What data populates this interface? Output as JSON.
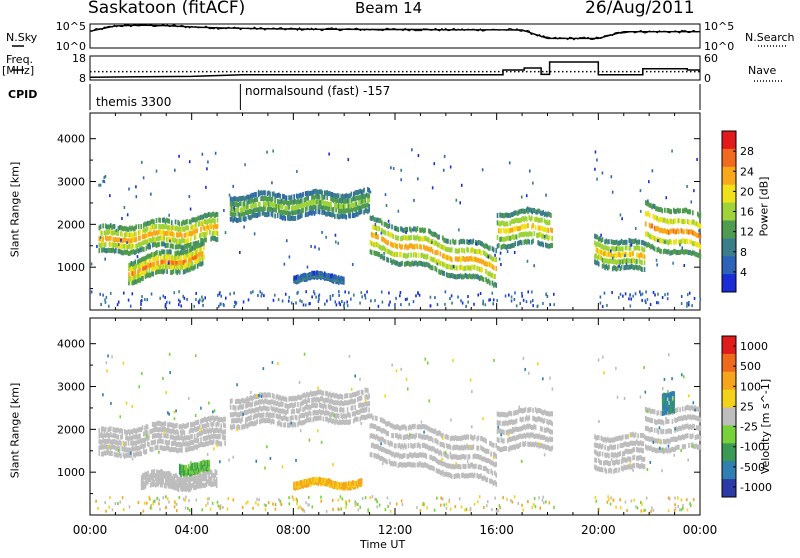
{
  "header": {
    "radar": "Saskatoon (fitACF)",
    "beam": "Beam 14",
    "date": "26/Aug/2011"
  },
  "panel_labels": {
    "nsky": "N.Sky",
    "nsearch": "N.Search",
    "freq_line1": "Freq.",
    "freq_line2": "[MHz]",
    "nave": "Nave",
    "cpid": "CPID"
  },
  "cpid_labels": [
    "themis 3300",
    "normalsound (fast) -157"
  ],
  "colors": {
    "background": "#ffffff",
    "axis": "#000000",
    "ground_scatter": "#bdbdbd"
  },
  "chart_data": [
    {
      "type": "line",
      "name": "noise",
      "y_left": {
        "label": "N.Sky",
        "tick_labels": [
          "10^5",
          "10^0"
        ]
      },
      "y_right": {
        "label": "N.Search",
        "tick_labels": [
          "10^5",
          "10^0"
        ]
      },
      "x": [
        "00:00",
        "01:00",
        "02:00",
        "03:00",
        "04:00",
        "05:00",
        "06:00",
        "07:00",
        "08:00",
        "09:00",
        "10:00",
        "11:00",
        "12:00",
        "13:00",
        "14:00",
        "15:00",
        "16:00",
        "17:00",
        "18:00",
        "19:00",
        "20:00",
        "21:00",
        "22:00",
        "23:00",
        "24:00"
      ],
      "series": [
        {
          "name": "N.Sky",
          "values": [
            0.7,
            0.92,
            0.95,
            0.93,
            0.88,
            0.84,
            0.82,
            0.8,
            0.79,
            0.78,
            0.78,
            0.77,
            0.77,
            0.77,
            0.76,
            0.76,
            0.76,
            0.75,
            0.4,
            0.4,
            0.4,
            0.68,
            0.68,
            0.68,
            0.68
          ]
        }
      ]
    },
    {
      "type": "line",
      "name": "frequency",
      "y_left": {
        "label": "Freq. [MHz]",
        "ticks": [
          8,
          18
        ]
      },
      "y_right": {
        "label": "Nave",
        "ticks": [
          0,
          60
        ]
      },
      "series": [
        {
          "name": "Freq.",
          "points": [
            [
              "00:00",
              11.5
            ],
            [
              "16:00",
              11.5
            ],
            [
              "17:00",
              11.5
            ],
            [
              "18:00",
              11.5
            ],
            [
              "20:00",
              11.5
            ],
            [
              "24:00",
              11.5
            ]
          ]
        },
        {
          "name": "Nave",
          "points": [
            [
              "00:00",
              7
            ],
            [
              "04:00",
              9
            ],
            [
              "06:00",
              13
            ],
            [
              "16:15",
              13
            ],
            [
              "16:15",
              25
            ],
            [
              "17:05",
              25
            ],
            [
              "17:05",
              30
            ],
            [
              "17:45",
              30
            ],
            [
              "17:45",
              14
            ],
            [
              "18:05",
              14
            ],
            [
              "18:05",
              45
            ],
            [
              "20:00",
              45
            ],
            [
              "20:00",
              13
            ],
            [
              "21:45",
              13
            ],
            [
              "21:45",
              28
            ],
            [
              "23:30",
              28
            ],
            [
              "23:30",
              25
            ],
            [
              "24:00",
              25
            ]
          ]
        }
      ]
    },
    {
      "type": "heatmap",
      "name": "power",
      "ylabel": "Slant Range [km]",
      "xlabel": "",
      "ylim": [
        0,
        4600
      ],
      "yticks": [
        1000,
        2000,
        3000,
        4000
      ],
      "colorbar": {
        "label": "Power [dB]",
        "ticks": [
          4,
          8,
          12,
          16,
          20,
          24,
          28
        ],
        "colors": [
          "#1a2cd6",
          "#2c63b8",
          "#3b7e8a",
          "#4f9b4f",
          "#9fd33a",
          "#f0e21a",
          "#f9a81c",
          "#f26a1d",
          "#e31a1c"
        ]
      },
      "bands": [
        {
          "start": "00:20",
          "end": "05:00",
          "r0": 1250,
          "r1": 1950,
          "center": 1600,
          "peak": 24,
          "drift": 300
        },
        {
          "start": "01:30",
          "end": "04:30",
          "r0": 650,
          "r1": 1200,
          "center": 900,
          "peak": 26,
          "drift": 400
        },
        {
          "start": "05:30",
          "end": "11:00",
          "r0": 2100,
          "r1": 2700,
          "center": 2400,
          "peak": 16,
          "drift": 100
        },
        {
          "start": "11:00",
          "end": "16:00",
          "r0": 1300,
          "r1": 2300,
          "center": 1700,
          "peak": 24,
          "drift": -700
        },
        {
          "start": "16:00",
          "end": "18:10",
          "r0": 1500,
          "r1": 2400,
          "center": 1900,
          "peak": 22,
          "drift": 0
        },
        {
          "start": "19:50",
          "end": "21:50",
          "r0": 1050,
          "r1": 1800,
          "center": 1400,
          "peak": 22,
          "drift": -200
        },
        {
          "start": "21:50",
          "end": "24:00",
          "r0": 1400,
          "r1": 2600,
          "center": 2000,
          "peak": 26,
          "drift": -300
        },
        {
          "start": "08:00",
          "end": "10:00",
          "r0": 700,
          "r1": 800,
          "center": 750,
          "peak": 10,
          "drift": 0
        }
      ]
    },
    {
      "type": "heatmap",
      "name": "velocity",
      "ylabel": "Slant Range [km]",
      "xlabel": "Time UT",
      "ylim": [
        0,
        4600
      ],
      "yticks": [
        1000,
        2000,
        3000,
        4000
      ],
      "xticks": [
        "00:00",
        "04:00",
        "08:00",
        "12:00",
        "16:00",
        "20:00",
        "00:00"
      ],
      "colorbar": {
        "label": "Velocity [m s^-1]",
        "ticks": [
          1000,
          500,
          100,
          25,
          -25,
          -100,
          -500,
          -1000
        ],
        "colors": [
          "#2a3aa6",
          "#2f7fb0",
          "#3a9a55",
          "#77d13a",
          "#bdbdbd",
          "#f5d21a",
          "#f5a41c",
          "#f06a1c",
          "#e01b1b"
        ]
      },
      "bands": [
        {
          "start": "00:20",
          "end": "05:20",
          "r0": 1300,
          "r1": 2000,
          "center": 1650,
          "kind": "ground",
          "drift": 300
        },
        {
          "start": "05:30",
          "end": "11:00",
          "r0": 2050,
          "r1": 2800,
          "center": 2400,
          "kind": "ground",
          "drift": 150
        },
        {
          "start": "11:00",
          "end": "16:00",
          "r0": 1300,
          "r1": 2400,
          "center": 1800,
          "kind": "ground",
          "drift": -600
        },
        {
          "start": "16:00",
          "end": "18:10",
          "r0": 1500,
          "r1": 2500,
          "center": 2000,
          "kind": "ground",
          "drift": 0
        },
        {
          "start": "19:50",
          "end": "21:50",
          "r0": 1000,
          "r1": 1900,
          "center": 1450,
          "kind": "ground",
          "drift": 0
        },
        {
          "start": "21:50",
          "end": "24:00",
          "r0": 1500,
          "r1": 2600,
          "center": 2000,
          "kind": "ground",
          "drift": 0
        },
        {
          "start": "02:00",
          "end": "05:00",
          "r0": 650,
          "r1": 1000,
          "center": 800,
          "kind": "ground",
          "drift": 0
        },
        {
          "start": "03:30",
          "end": "04:40",
          "r0": 1000,
          "r1": 1200,
          "center": 1100,
          "kind": "green",
          "drift": 0
        },
        {
          "start": "08:00",
          "end": "10:40",
          "r0": 680,
          "r1": 780,
          "center": 730,
          "kind": "orange",
          "drift": 0
        },
        {
          "start": "22:30",
          "end": "23:00",
          "r0": 2400,
          "r1": 2900,
          "center": 2650,
          "kind": "blue",
          "drift": 0
        }
      ]
    }
  ]
}
